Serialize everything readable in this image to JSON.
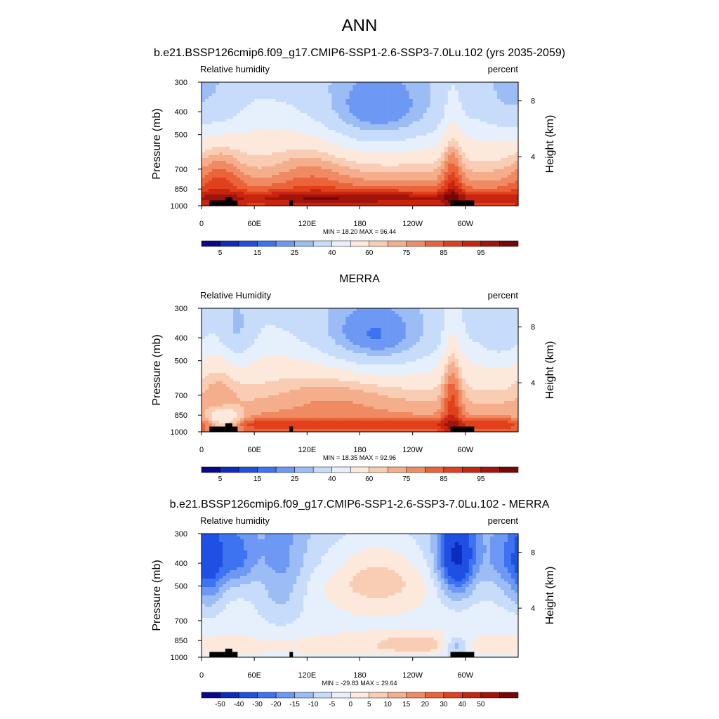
{
  "figure": {
    "title": "ANN",
    "panels": [
      {
        "header": "b.e21.BSSP126cmip6.f09_g17.CMIP6-SSP1-2.6-SSP3-7.0Lu.102 (yrs 2035-2059)",
        "variable": "Relative humidity",
        "units": "percent",
        "stats": "MIN =  18.20  MAX =  96.44",
        "kind": "abs"
      },
      {
        "header": "MERRA",
        "variable": "Relative Humidity",
        "units": "percent",
        "stats": "MIN =  18.35  MAX =  92.96",
        "kind": "abs"
      },
      {
        "header": "b.e21.BSSP126cmip6.f09_g17.CMIP6-SSP1-2.6-SSP3-7.0Lu.102 - MERRA",
        "variable": "Relative humidity",
        "units": "percent",
        "stats": "MIN = -29.83  MAX =  29.64",
        "kind": "diff"
      }
    ]
  },
  "chart_data": {
    "type": "heatmap",
    "x_ticks": [
      "0",
      "60E",
      "120E",
      "180",
      "120W",
      "60W"
    ],
    "x_tick_lon": [
      0,
      60,
      120,
      180,
      240,
      300
    ],
    "xlim": [
      0,
      360
    ],
    "ylabel": "Pressure (mb)",
    "y_ticks": [
      "300",
      "400",
      "500",
      "700",
      "850",
      "1000"
    ],
    "y_tick_p": [
      300,
      400,
      500,
      700,
      850,
      1000
    ],
    "ylim": [
      1000,
      300
    ],
    "y_scale": "log",
    "y2label": "Height (km)",
    "y2_ticks": [
      "8",
      "4"
    ],
    "y2_tick_p": [
      360,
      620
    ],
    "abs_colorbar": {
      "labels": [
        "5",
        "15",
        "25",
        "40",
        "60",
        "75",
        "85",
        "95"
      ],
      "colors": [
        "#08088a",
        "#0c2cc0",
        "#1f4fe3",
        "#3d72f0",
        "#6d98f4",
        "#9cbcf6",
        "#c6dcfa",
        "#e6f0fc",
        "#fde9dc",
        "#f9cdb4",
        "#f5ae8c",
        "#f08a62",
        "#ea6339",
        "#e0401c",
        "#c82510",
        "#a0140b",
        "#780605"
      ]
    },
    "diff_colorbar": {
      "labels": [
        "-50",
        "-40",
        "-30",
        "-20",
        "-15",
        "-10",
        "-5",
        "0",
        "5",
        "10",
        "15",
        "20",
        "30",
        "40",
        "50"
      ],
      "colors": [
        "#08088a",
        "#0c2cc0",
        "#1f4fe3",
        "#3d72f0",
        "#6d98f4",
        "#9cbcf6",
        "#c6dcfa",
        "#e6f0fc",
        "#fde9dc",
        "#f9cdb4",
        "#f5ae8c",
        "#f08a62",
        "#ea6339",
        "#e0401c",
        "#c82510",
        "#a0140b",
        "#780605"
      ]
    },
    "field_features": [
      {
        "base": [
          [
            300,
            38
          ],
          [
            400,
            44
          ],
          [
            500,
            52
          ],
          [
            700,
            64
          ],
          [
            850,
            75
          ],
          [
            925,
            86
          ],
          [
            1000,
            82
          ]
        ],
        "blobs": [
          {
            "lon": 200,
            "p": 420,
            "dlon": 55,
            "dp": 120,
            "amp": -24
          },
          {
            "lon": 350,
            "p": 380,
            "dlon": 25,
            "dp": 110,
            "amp": -12
          },
          {
            "lon": 28,
            "p": 380,
            "dlon": 15,
            "dp": 90,
            "amp": -6
          },
          {
            "lon": 20,
            "p": 750,
            "dlon": 18,
            "dp": 160,
            "amp": 12
          },
          {
            "lon": 285,
            "p": 700,
            "dlon": 8,
            "dp": 300,
            "amp": 15
          },
          {
            "lon": 125,
            "p": 680,
            "dlon": 30,
            "dp": 200,
            "amp": 8
          },
          {
            "lon": 180,
            "p": 920,
            "dlon": 90,
            "dp": 50,
            "amp": 8
          }
        ]
      },
      {
        "base": [
          [
            300,
            38
          ],
          [
            400,
            44
          ],
          [
            500,
            52
          ],
          [
            700,
            62
          ],
          [
            850,
            70
          ],
          [
            925,
            84
          ],
          [
            1000,
            78
          ]
        ],
        "blobs": [
          {
            "lon": 195,
            "p": 420,
            "dlon": 50,
            "dp": 110,
            "amp": -26
          },
          {
            "lon": 340,
            "p": 400,
            "dlon": 20,
            "dp": 100,
            "amp": -10
          },
          {
            "lon": 40,
            "p": 400,
            "dlon": 14,
            "dp": 100,
            "amp": -14
          },
          {
            "lon": 285,
            "p": 650,
            "dlon": 8,
            "dp": 300,
            "amp": 18
          },
          {
            "lon": 150,
            "p": 640,
            "dlon": 50,
            "dp": 150,
            "amp": 8
          },
          {
            "lon": 20,
            "p": 650,
            "dlon": 15,
            "dp": 150,
            "amp": 8
          },
          {
            "lon": 25,
            "p": 900,
            "dlon": 15,
            "dp": 80,
            "amp": -25
          }
        ]
      },
      {
        "base": [
          [
            300,
            -4
          ],
          [
            400,
            -2
          ],
          [
            500,
            2
          ],
          [
            700,
            3
          ],
          [
            850,
            6
          ],
          [
            925,
            8
          ],
          [
            1000,
            2
          ]
        ],
        "blobs": [
          {
            "lon": 290,
            "p": 380,
            "dlon": 15,
            "dp": 120,
            "amp": -30
          },
          {
            "lon": 40,
            "p": 380,
            "dlon": 15,
            "dp": 90,
            "amp": -14
          },
          {
            "lon": 90,
            "p": 450,
            "dlon": 20,
            "dp": 200,
            "amp": -10
          },
          {
            "lon": 200,
            "p": 450,
            "dlon": 40,
            "dp": 120,
            "amp": 12
          },
          {
            "lon": 10,
            "p": 400,
            "dlon": 12,
            "dp": 150,
            "amp": -15
          },
          {
            "lon": 350,
            "p": 400,
            "dlon": 20,
            "dp": 120,
            "amp": -12
          },
          {
            "lon": 290,
            "p": 900,
            "dlon": 10,
            "dp": 60,
            "amp": -15
          },
          {
            "lon": 240,
            "p": 870,
            "dlon": 30,
            "dp": 50,
            "amp": 8
          }
        ]
      }
    ],
    "topography": [
      {
        "lon0": 9,
        "lon1": 27,
        "p_top": 950
      },
      {
        "lon0": 27,
        "lon1": 35,
        "p_top": 920
      },
      {
        "lon0": 35,
        "lon1": 41,
        "p_top": 950
      },
      {
        "lon0": 100,
        "lon1": 104,
        "p_top": 950
      },
      {
        "lon0": 283,
        "lon1": 310,
        "p_top": 950
      }
    ]
  }
}
